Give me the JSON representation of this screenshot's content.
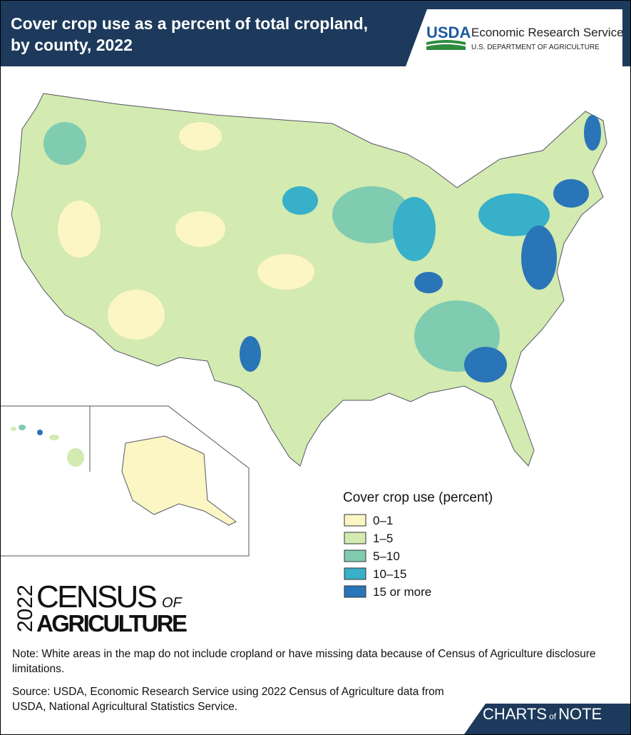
{
  "header": {
    "title_lines": [
      "Cover crop use as a percent of total cropland,",
      "by county, 2022"
    ],
    "agency_logo": "USDA",
    "agency": "Economic Research Service",
    "department": "U.S. DEPARTMENT OF AGRICULTURE"
  },
  "legend": {
    "title": "Cover crop use (percent)",
    "items": [
      {
        "label": "0–1",
        "color": "#fbf6c4"
      },
      {
        "label": "1–5",
        "color": "#d3eab0"
      },
      {
        "label": "5–10",
        "color": "#80ccb1"
      },
      {
        "label": "10–15",
        "color": "#38b0c9"
      },
      {
        "label": "15 or more",
        "color": "#2a74b8"
      }
    ]
  },
  "census_logo": {
    "year": "2022",
    "word1": "CENSUS",
    "of": "OF",
    "word2": "AGRICULTURE"
  },
  "note": "Note: White areas in the map do not include cropland or have missing data because of Census of Agriculture disclosure limitations.",
  "source": "Source: USDA, Economic Research Service using 2022 Census of Agriculture data from USDA, National Agricultural Statistics Service.",
  "footer": {
    "brand1": "CHARTS",
    "brand_of": "of",
    "brand2": "NOTE"
  }
}
